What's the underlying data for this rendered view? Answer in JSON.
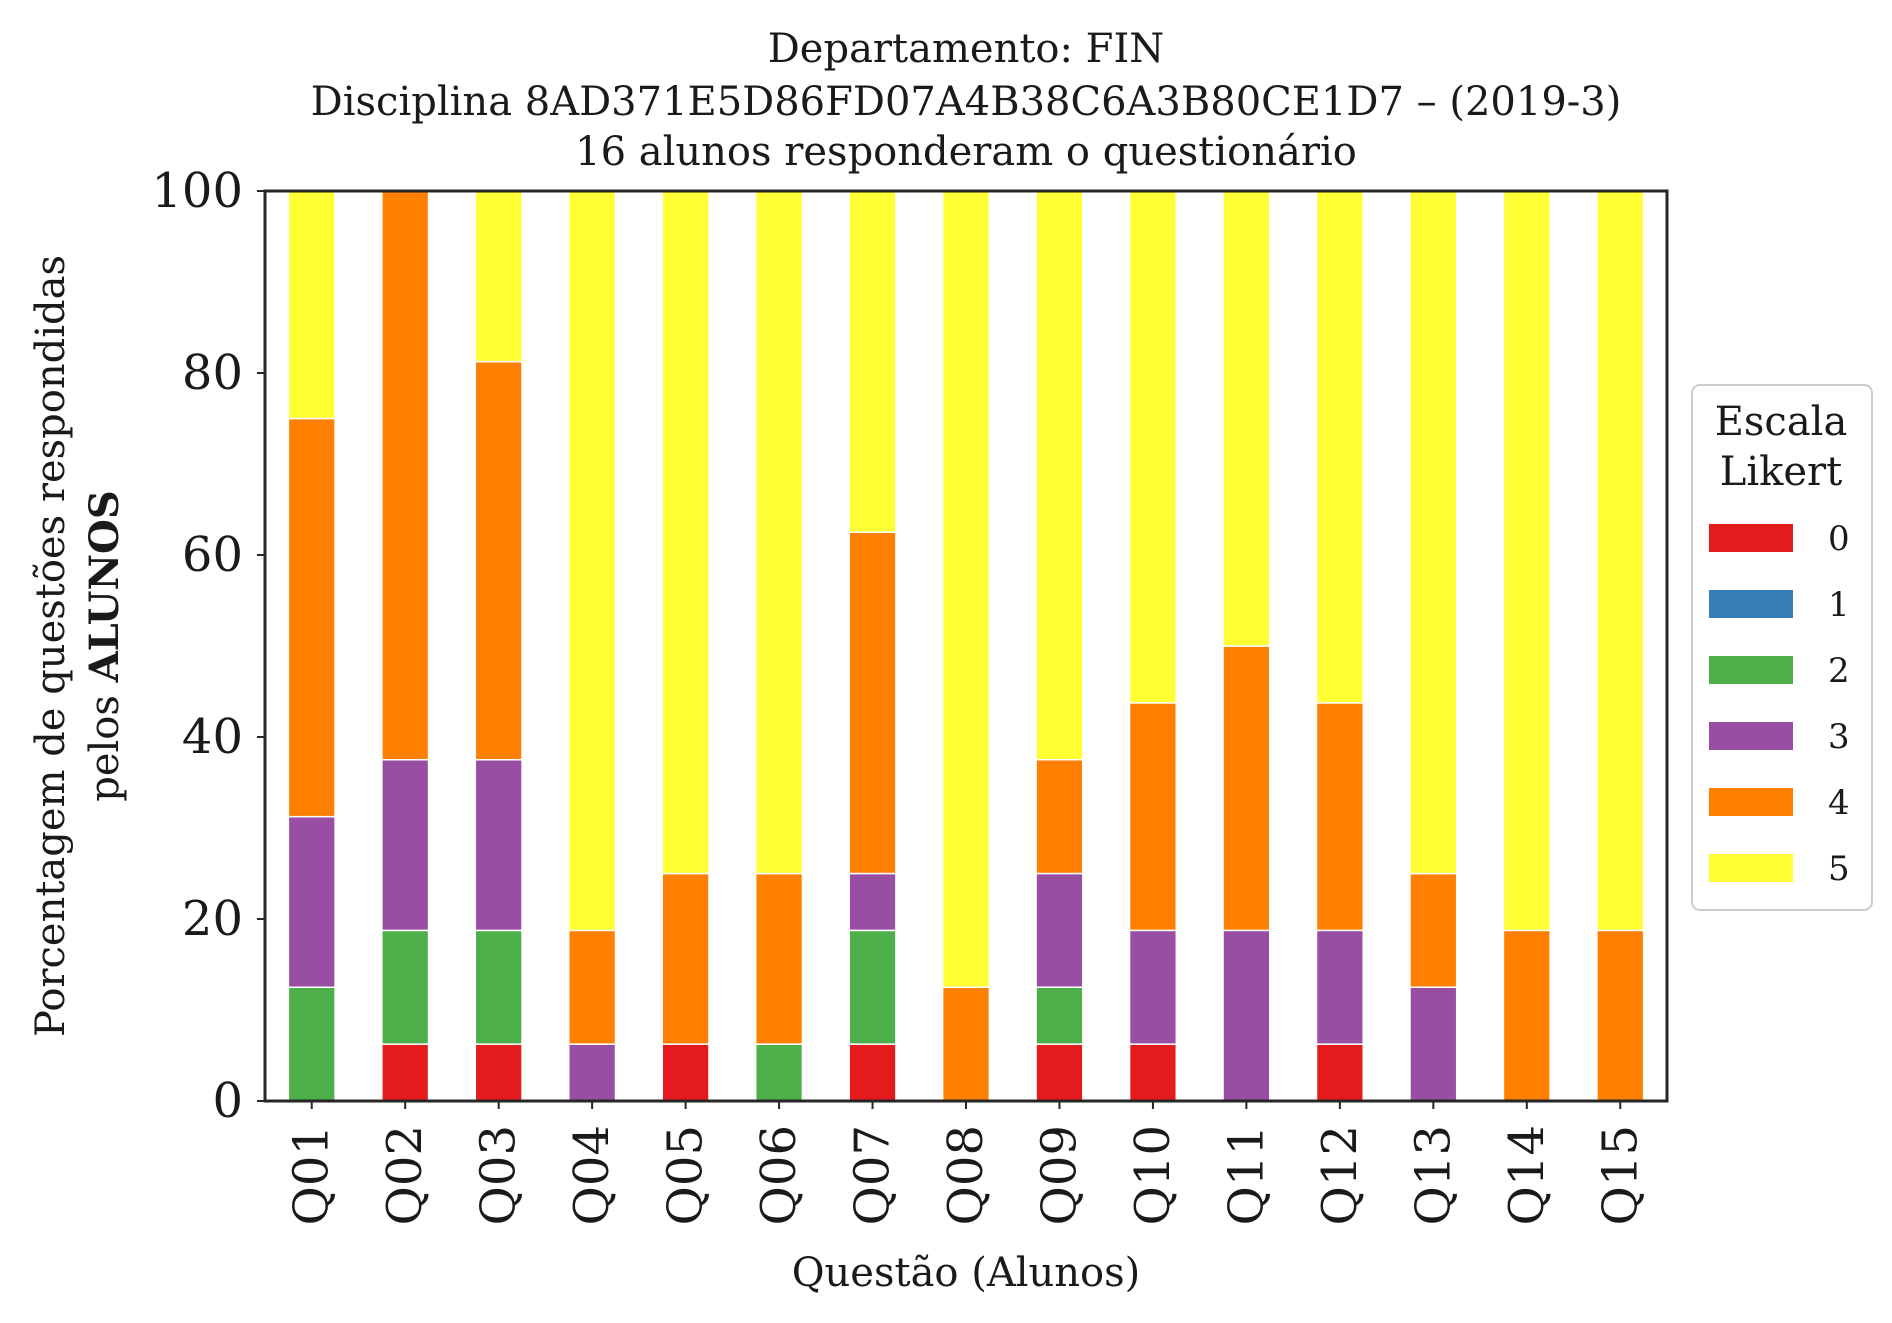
{
  "chart_data": {
    "type": "bar",
    "stacked": true,
    "title_lines": [
      "Departamento: FIN",
      "Disciplina 8AD371E5D86FD07A4B38C6A3B80CE1D7 – (2019-3)",
      "16 alunos responderam o questionário"
    ],
    "xlabel": "Questão (Alunos)",
    "ylabel_line1": "Porcentagem de questões respondidas",
    "ylabel_line2_prefix": "pelos ",
    "ylabel_line2_bold": "ALUNOS",
    "ylim": [
      0,
      100
    ],
    "yticks": [
      "0",
      "20",
      "40",
      "60",
      "80",
      "100"
    ],
    "categories": [
      "Q01",
      "Q02",
      "Q03",
      "Q04",
      "Q05",
      "Q06",
      "Q07",
      "Q08",
      "Q09",
      "Q10",
      "Q11",
      "Q12",
      "Q13",
      "Q14",
      "Q15"
    ],
    "legend": {
      "title_lines": [
        "Escala",
        "Likert"
      ],
      "placement": "right-center"
    },
    "series": [
      {
        "name": "0",
        "color": "#e41a1c",
        "values": [
          0,
          6.25,
          6.25,
          0,
          6.25,
          0,
          6.25,
          0,
          6.25,
          6.25,
          0,
          6.25,
          0,
          0,
          0
        ]
      },
      {
        "name": "1",
        "color": "#377eb8",
        "values": [
          0,
          0,
          0,
          0,
          0,
          0,
          0,
          0,
          0,
          0,
          0,
          0,
          0,
          0,
          0
        ]
      },
      {
        "name": "2",
        "color": "#4daf4a",
        "values": [
          12.5,
          12.5,
          12.5,
          0,
          0,
          6.25,
          12.5,
          0,
          6.25,
          0,
          0,
          0,
          0,
          0,
          0
        ]
      },
      {
        "name": "3",
        "color": "#984ea3",
        "values": [
          18.75,
          18.75,
          18.75,
          6.25,
          0,
          0,
          6.25,
          0,
          12.5,
          12.5,
          18.75,
          12.5,
          12.5,
          0,
          0
        ]
      },
      {
        "name": "4",
        "color": "#ff7f00",
        "values": [
          43.75,
          62.5,
          43.75,
          12.5,
          18.75,
          18.75,
          37.5,
          12.5,
          12.5,
          25,
          31.25,
          25,
          12.5,
          18.75,
          18.75
        ]
      },
      {
        "name": "5",
        "color": "#ffff33",
        "values": [
          25,
          0,
          18.75,
          81.25,
          75,
          75,
          37.5,
          87.5,
          62.5,
          56.25,
          50,
          56.25,
          75,
          81.25,
          81.25
        ]
      }
    ],
    "grid": false
  }
}
